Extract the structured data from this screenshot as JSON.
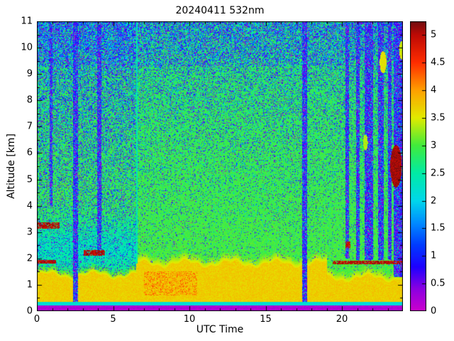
{
  "figure": {
    "background": "#ffffff"
  },
  "chart_data": {
    "type": "heatmap",
    "title": "20240411 532nm",
    "xlabel": "UTC Time",
    "ylabel": "Altitude [km]",
    "xlim": [
      0,
      24
    ],
    "ylim": [
      0,
      11
    ],
    "xticks_major": [
      0,
      5,
      10,
      15,
      20
    ],
    "xticks_minor_step": 1,
    "yticks_major": [
      0,
      1,
      2,
      3,
      4,
      5,
      6,
      7,
      8,
      9,
      10,
      11
    ],
    "yticks_minor_step": 0.5,
    "colorbar": {
      "vmin": 0,
      "vmax": 5.25,
      "ticks": [
        0,
        0.5,
        1,
        1.5,
        2,
        2.5,
        3,
        3.5,
        4,
        4.5,
        5
      ]
    },
    "colormap_stops": [
      [
        0.0,
        205,
        0,
        205
      ],
      [
        0.4,
        140,
        0,
        225
      ],
      [
        0.8,
        30,
        0,
        255
      ],
      [
        1.2,
        0,
        60,
        255
      ],
      [
        1.6,
        0,
        140,
        255
      ],
      [
        2.0,
        0,
        215,
        235
      ],
      [
        2.5,
        0,
        235,
        165
      ],
      [
        3.0,
        65,
        235,
        60
      ],
      [
        3.5,
        225,
        235,
        0
      ],
      [
        4.0,
        255,
        160,
        0
      ],
      [
        4.5,
        255,
        45,
        0
      ],
      [
        5.0,
        190,
        10,
        5
      ],
      [
        5.25,
        110,
        12,
        15
      ]
    ],
    "features": {
      "seed": 20240411,
      "background": {
        "base": 3.02,
        "alt_slope": -0.018,
        "noise": 0.17
      },
      "bottom_band": {
        "top_km": 0.22,
        "value": 0.05
      },
      "surface_line": {
        "to_km": 0.34,
        "value": 1.95
      },
      "boundary_layer": {
        "value": 3.55,
        "noise": 0.3,
        "top_left_km": 1.35,
        "top_mid_km": 1.8,
        "top_right_km": 1.25,
        "left_end_t": 6.5,
        "right_start_t": 19.0,
        "wave_amp": 0.12
      },
      "orange_patch": {
        "t0": 7.0,
        "t1": 10.5,
        "a0": 0.6,
        "a1": 1.5,
        "boost": 0.55,
        "prob": 0.45
      },
      "left_region": {
        "t_end": 6.5,
        "cyan_center_km": 2.3,
        "cyan_depth": 0.55,
        "cyan_sigma": 1.1,
        "extra_speckle": 0.17
      },
      "speckle": {
        "base": 0.05,
        "alt_gain": 0.42,
        "alt_pow": 1.6,
        "top_extra": 0.18,
        "top_start_km": 9.3
      },
      "purple_columns": [
        {
          "t": 0.95,
          "hw": 0.09,
          "a0": 4.0,
          "a1": 11
        },
        {
          "t": 2.55,
          "hw": 0.16,
          "a0": 0.35,
          "a1": 11
        },
        {
          "t": 4.1,
          "hw": 0.13,
          "a0": 2.35,
          "a1": 11
        },
        {
          "t": 6.55,
          "hw": 0.05,
          "a0": 1.8,
          "a1": 11,
          "value": 2.25
        },
        {
          "t": 17.55,
          "hw": 0.16,
          "a0": 0.35,
          "a1": 11
        },
        {
          "t": 20.35,
          "hw": 0.13,
          "a0": 2.0,
          "a1": 11
        },
        {
          "t": 21.05,
          "hw": 0.1,
          "a0": 1.95,
          "a1": 11
        },
        {
          "t": 21.75,
          "hw": 0.28,
          "a0": 1.95,
          "a1": 11
        },
        {
          "t": 22.55,
          "hw": 0.18,
          "a0": 1.95,
          "a1": 11
        },
        {
          "t": 23.15,
          "hw": 0.12,
          "a0": 1.95,
          "a1": 11
        },
        {
          "t": 23.7,
          "hw": 0.32,
          "a0": 1.3,
          "a1": 11
        }
      ],
      "bright_patches": [
        {
          "t": 22.7,
          "a": 9.45,
          "rt": 0.22,
          "ra": 0.42,
          "value": 3.4
        },
        {
          "t": 23.92,
          "a": 9.9,
          "rt": 0.16,
          "ra": 0.35,
          "value": 3.3
        },
        {
          "t": 21.55,
          "a": 6.4,
          "rt": 0.15,
          "ra": 0.3,
          "value": 3.2
        }
      ],
      "red_streaks": [
        {
          "t0": 0.05,
          "t1": 1.5,
          "a0": 3.12,
          "a1": 3.38
        },
        {
          "t0": 0.05,
          "t1": 1.25,
          "a0": 1.8,
          "a1": 1.93
        },
        {
          "t0": 3.05,
          "t1": 4.45,
          "a0": 2.1,
          "a1": 2.32
        },
        {
          "t0": 19.4,
          "t1": 24.0,
          "a0": 1.78,
          "a1": 1.92
        },
        {
          "t0": 20.25,
          "t1": 20.55,
          "a0": 2.4,
          "a1": 2.65
        }
      ],
      "red_blob": {
        "t": 23.55,
        "a": 5.5,
        "rt": 0.38,
        "ra": 0.8
      },
      "cloud_value": 5.15
    }
  }
}
